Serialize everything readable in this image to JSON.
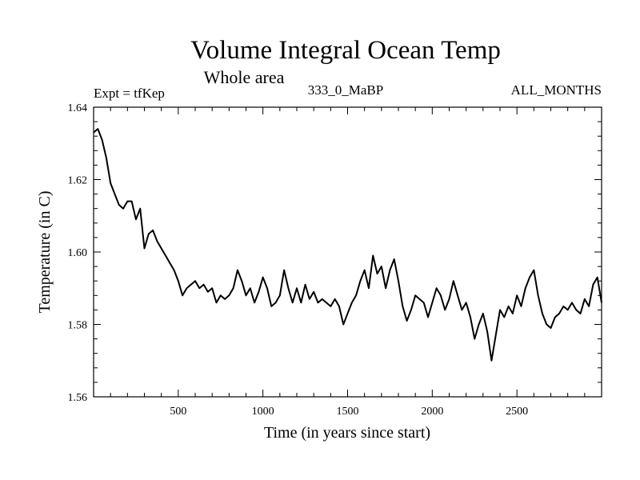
{
  "chart_data": {
    "type": "line",
    "title": "Volume Integral Ocean Temp",
    "subtitle": "Whole area",
    "annotations": {
      "experiment": "Expt = tfKep",
      "period": "333_0_MaBP",
      "months": "ALL_MONTHS"
    },
    "xlabel": "Time (in years since start)",
    "ylabel": "Temperature (in C)",
    "xlim": [
      0,
      3000
    ],
    "ylim": [
      1.56,
      1.64
    ],
    "x_ticks": [
      500,
      1000,
      1500,
      2000,
      2500
    ],
    "x_tick_labels": [
      "500",
      "1000",
      "1500",
      "2000",
      "2500"
    ],
    "y_ticks": [
      1.56,
      1.58,
      1.6,
      1.62,
      1.64
    ],
    "y_tick_labels": [
      "1.56",
      "1.58",
      "1.60",
      "1.62",
      "1.64"
    ],
    "grid": false,
    "series": [
      {
        "color": "#000000",
        "x": [
          0,
          25,
          50,
          75,
          100,
          125,
          150,
          175,
          200,
          225,
          250,
          275,
          300,
          325,
          350,
          375,
          400,
          425,
          450,
          475,
          500,
          525,
          550,
          575,
          600,
          625,
          650,
          675,
          700,
          725,
          750,
          775,
          800,
          825,
          850,
          875,
          900,
          925,
          950,
          975,
          1000,
          1025,
          1050,
          1075,
          1100,
          1125,
          1150,
          1175,
          1200,
          1225,
          1250,
          1275,
          1300,
          1325,
          1350,
          1375,
          1400,
          1425,
          1450,
          1475,
          1500,
          1525,
          1550,
          1575,
          1600,
          1625,
          1650,
          1675,
          1700,
          1725,
          1750,
          1775,
          1800,
          1825,
          1850,
          1875,
          1900,
          1925,
          1950,
          1975,
          2000,
          2025,
          2050,
          2075,
          2100,
          2125,
          2150,
          2175,
          2200,
          2225,
          2250,
          2275,
          2300,
          2325,
          2350,
          2375,
          2400,
          2425,
          2450,
          2475,
          2500,
          2525,
          2550,
          2575,
          2600,
          2625,
          2650,
          2675,
          2700,
          2725,
          2750,
          2775,
          2800,
          2825,
          2850,
          2875,
          2900,
          2925,
          2950,
          2975,
          3000
        ],
        "values": [
          1.633,
          1.634,
          1.631,
          1.626,
          1.619,
          1.616,
          1.613,
          1.612,
          1.614,
          1.614,
          1.609,
          1.612,
          1.601,
          1.605,
          1.606,
          1.603,
          1.601,
          1.599,
          1.597,
          1.595,
          1.592,
          1.588,
          1.59,
          1.591,
          1.592,
          1.59,
          1.591,
          1.589,
          1.59,
          1.586,
          1.588,
          1.587,
          1.588,
          1.59,
          1.595,
          1.592,
          1.588,
          1.59,
          1.586,
          1.589,
          1.593,
          1.59,
          1.585,
          1.586,
          1.588,
          1.595,
          1.59,
          1.586,
          1.59,
          1.586,
          1.591,
          1.587,
          1.589,
          1.586,
          1.587,
          1.586,
          1.585,
          1.587,
          1.585,
          1.58,
          1.583,
          1.586,
          1.588,
          1.592,
          1.595,
          1.59,
          1.599,
          1.594,
          1.596,
          1.59,
          1.595,
          1.598,
          1.592,
          1.585,
          1.581,
          1.584,
          1.588,
          1.587,
          1.586,
          1.582,
          1.586,
          1.59,
          1.588,
          1.584,
          1.587,
          1.592,
          1.588,
          1.584,
          1.586,
          1.582,
          1.576,
          1.58,
          1.583,
          1.578,
          1.57,
          1.577,
          1.584,
          1.582,
          1.585,
          1.583,
          1.588,
          1.585,
          1.59,
          1.593,
          1.595,
          1.588,
          1.583,
          1.58,
          1.579,
          1.582,
          1.583,
          1.585,
          1.584,
          1.586,
          1.584,
          1.583,
          1.587,
          1.585,
          1.591,
          1.593,
          1.586
        ]
      }
    ]
  }
}
